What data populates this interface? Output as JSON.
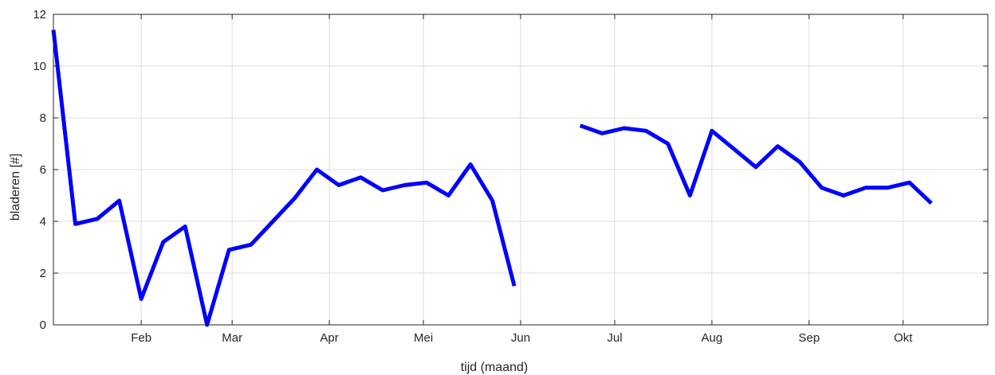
{
  "chart_data": {
    "type": "line",
    "xlabel": "tijd (maand)",
    "ylabel": "bladeren [#]",
    "ylim": [
      0,
      12
    ],
    "xlim": [
      "2016-01-04",
      "2016-10-28"
    ],
    "grid": true,
    "line_color": "#0000ff",
    "yticks": [
      {
        "value": 0,
        "label": "0"
      },
      {
        "value": 2,
        "label": "2"
      },
      {
        "value": 4,
        "label": "4"
      },
      {
        "value": 6,
        "label": "6"
      },
      {
        "value": 8,
        "label": "8"
      },
      {
        "value": 10,
        "label": "10"
      },
      {
        "value": 12,
        "label": "12"
      }
    ],
    "xticks": [
      {
        "date": "2016-02-01",
        "label": "Feb"
      },
      {
        "date": "2016-03-01",
        "label": "Mar"
      },
      {
        "date": "2016-04-01",
        "label": "Apr"
      },
      {
        "date": "2016-05-01",
        "label": "Mei"
      },
      {
        "date": "2016-06-01",
        "label": "Jun"
      },
      {
        "date": "2016-07-01",
        "label": "Jul"
      },
      {
        "date": "2016-08-01",
        "label": "Aug"
      },
      {
        "date": "2016-09-01",
        "label": "Sep"
      },
      {
        "date": "2016-10-01",
        "label": "Okt"
      }
    ],
    "segments": [
      [
        {
          "x": "2016-01-04",
          "y": 11.4
        },
        {
          "x": "2016-01-11",
          "y": 3.9
        },
        {
          "x": "2016-01-18",
          "y": 4.1
        },
        {
          "x": "2016-01-25",
          "y": 4.8
        },
        {
          "x": "2016-02-01",
          "y": 1.0
        },
        {
          "x": "2016-02-08",
          "y": 3.2
        },
        {
          "x": "2016-02-15",
          "y": 3.8
        },
        {
          "x": "2016-02-22",
          "y": 0.0
        },
        {
          "x": "2016-02-29",
          "y": 2.9
        },
        {
          "x": "2016-03-07",
          "y": 3.1
        },
        {
          "x": "2016-03-14",
          "y": 4.0
        },
        {
          "x": "2016-03-21",
          "y": 4.9
        },
        {
          "x": "2016-03-28",
          "y": 6.0
        },
        {
          "x": "2016-04-04",
          "y": 5.4
        },
        {
          "x": "2016-04-11",
          "y": 5.7
        },
        {
          "x": "2016-04-18",
          "y": 5.2
        },
        {
          "x": "2016-04-25",
          "y": 5.4
        },
        {
          "x": "2016-05-02",
          "y": 5.5
        },
        {
          "x": "2016-05-09",
          "y": 5.0
        },
        {
          "x": "2016-05-16",
          "y": 6.2
        },
        {
          "x": "2016-05-23",
          "y": 4.8
        },
        {
          "x": "2016-05-30",
          "y": 1.5
        }
      ],
      [
        {
          "x": "2016-06-20",
          "y": 7.7
        },
        {
          "x": "2016-06-27",
          "y": 7.4
        },
        {
          "x": "2016-07-04",
          "y": 7.6
        },
        {
          "x": "2016-07-11",
          "y": 7.5
        },
        {
          "x": "2016-07-18",
          "y": 7.0
        },
        {
          "x": "2016-07-25",
          "y": 5.0
        },
        {
          "x": "2016-08-01",
          "y": 7.5
        },
        {
          "x": "2016-08-08",
          "y": 6.8
        },
        {
          "x": "2016-08-15",
          "y": 6.1
        },
        {
          "x": "2016-08-22",
          "y": 6.9
        },
        {
          "x": "2016-08-29",
          "y": 6.3
        },
        {
          "x": "2016-09-05",
          "y": 5.3
        },
        {
          "x": "2016-09-12",
          "y": 5.0
        },
        {
          "x": "2016-09-19",
          "y": 5.3
        },
        {
          "x": "2016-09-26",
          "y": 5.3
        },
        {
          "x": "2016-10-03",
          "y": 5.5
        },
        {
          "x": "2016-10-10",
          "y": 4.7
        }
      ]
    ]
  }
}
